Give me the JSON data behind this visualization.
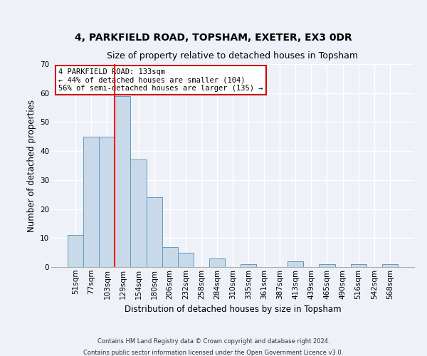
{
  "title1": "4, PARKFIELD ROAD, TOPSHAM, EXETER, EX3 0DR",
  "title2": "Size of property relative to detached houses in Topsham",
  "xlabel": "Distribution of detached houses by size in Topsham",
  "ylabel": "Number of detached properties",
  "categories": [
    "51sqm",
    "77sqm",
    "103sqm",
    "129sqm",
    "154sqm",
    "180sqm",
    "206sqm",
    "232sqm",
    "258sqm",
    "284sqm",
    "310sqm",
    "335sqm",
    "361sqm",
    "387sqm",
    "413sqm",
    "439sqm",
    "465sqm",
    "490sqm",
    "516sqm",
    "542sqm",
    "568sqm"
  ],
  "values": [
    11,
    45,
    45,
    59,
    37,
    24,
    7,
    5,
    0,
    3,
    0,
    1,
    0,
    0,
    2,
    0,
    1,
    0,
    1,
    0,
    1
  ],
  "bar_color": "#c8daea",
  "bar_edge_color": "#6699bb",
  "red_line_x": 2.5,
  "annotation_text": "4 PARKFIELD ROAD: 133sqm\n← 44% of detached houses are smaller (104)\n56% of semi-detached houses are larger (135) →",
  "annotation_box_color": "#ffffff",
  "annotation_box_edge_color": "#cc0000",
  "footnote1": "Contains HM Land Registry data © Crown copyright and database right 2024.",
  "footnote2": "Contains public sector information licensed under the Open Government Licence v3.0.",
  "ylim": [
    0,
    70
  ],
  "yticks": [
    0,
    10,
    20,
    30,
    40,
    50,
    60,
    70
  ],
  "bg_color": "#eef2f8",
  "grid_color": "#ffffff",
  "title1_fontsize": 10,
  "title2_fontsize": 9,
  "xlabel_fontsize": 8.5,
  "ylabel_fontsize": 8.5,
  "tick_fontsize": 7.5,
  "annotation_fontsize": 7.5,
  "footnote_fontsize": 6.0
}
